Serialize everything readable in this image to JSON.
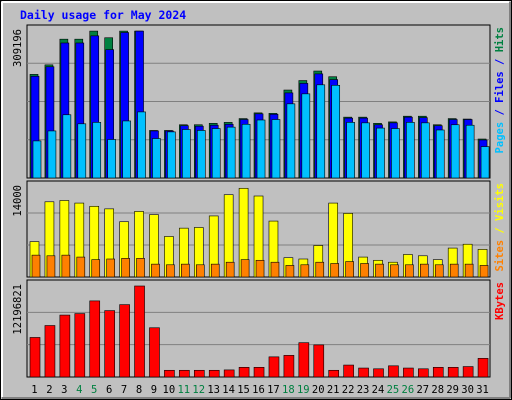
{
  "chart_data": {
    "type": "bar",
    "title": "Daily usage for May 2024",
    "categories": [
      "1",
      "2",
      "3",
      "4",
      "5",
      "6",
      "7",
      "8",
      "9",
      "10",
      "11",
      "12",
      "13",
      "14",
      "15",
      "16",
      "17",
      "18",
      "19",
      "20",
      "21",
      "22",
      "23",
      "24",
      "25",
      "26",
      "27",
      "28",
      "29",
      "30",
      "31"
    ],
    "weekend_days": [
      "4",
      "5",
      "11",
      "12",
      "18",
      "19",
      "25",
      "26"
    ],
    "panels": [
      {
        "id": "hits",
        "ymax_label": "309196",
        "ymax": 309196,
        "right_label": [
          {
            "text": "Pages",
            "color": "#00c0ff"
          },
          {
            "text": " / ",
            "color": "#0000ff"
          },
          {
            "text": "Files",
            "color": "#0000ff"
          },
          {
            "text": " / ",
            "color": "#0000ff"
          },
          {
            "text": "Hits",
            "color": "#008040"
          }
        ],
        "series": [
          {
            "name": "Hits",
            "color": "#008040",
            "values": [
              218000,
              238000,
              292000,
              292000,
              309000,
              295000,
              309000,
              309000,
              100000,
              100000,
              112000,
              112000,
              115000,
              117000,
              125000,
              137000,
              136000,
              185000,
              205000,
              225000,
              213000,
              128000,
              128000,
              115000,
              118000,
              130000,
              130000,
              112000,
              125000,
              124000,
              82000
            ]
          },
          {
            "name": "Files",
            "color": "#0000ff",
            "values": [
              214000,
              234000,
              284000,
              284000,
              299000,
              270000,
              306000,
              309000,
              99000,
              99000,
              110000,
              109000,
              111000,
              113000,
              123000,
              135000,
              134000,
              179000,
              199000,
              219000,
              207000,
              126000,
              126000,
              112000,
              116000,
              128000,
              127000,
              110000,
              123000,
              123000,
              80000
            ]
          },
          {
            "name": "Pages",
            "color": "#00c0ff",
            "values": [
              78000,
              99000,
              133000,
              114000,
              117000,
              81000,
              120000,
              139000,
              83000,
              97000,
              102000,
              100000,
              104000,
              107000,
              113000,
              122000,
              123000,
              156000,
              177000,
              196000,
              195000,
              117000,
              116000,
              105000,
              104000,
              117000,
              116000,
              101000,
              112000,
              111000,
              66000
            ]
          }
        ]
      },
      {
        "id": "visits",
        "ymax_label": "14000",
        "ymax": 14000,
        "right_label": [
          {
            "text": "Sites",
            "color": "#ff8000"
          },
          {
            "text": " / ",
            "color": "#ffff00"
          },
          {
            "text": "Visits",
            "color": "#ffff00"
          }
        ],
        "series": [
          {
            "name": "Visits",
            "color": "#ffff00",
            "values": [
              5500,
              11700,
              11900,
              11500,
              11000,
              10600,
              8600,
              10200,
              9700,
              6300,
              7600,
              7700,
              9500,
              12800,
              13800,
              12600,
              8700,
              3000,
              2800,
              4900,
              11500,
              9900,
              3100,
              2600,
              2300,
              3500,
              3300,
              2700,
              4500,
              5100,
              4300
            ]
          },
          {
            "name": "Sites",
            "color": "#ff8000",
            "values": [
              3400,
              3300,
              3400,
              3100,
              2700,
              2800,
              2900,
              2900,
              2000,
              1900,
              2000,
              1900,
              2000,
              2300,
              2700,
              2600,
              2300,
              1800,
              1900,
              2300,
              2100,
              2400,
              2100,
              2000,
              1900,
              1900,
              2000,
              1900,
              2000,
              2000,
              1800
            ]
          }
        ]
      },
      {
        "id": "kbytes",
        "ymax_label": "12196821",
        "ymax": 12196821,
        "right_label": [
          {
            "text": "KBytes",
            "color": "#ff0000"
          }
        ],
        "series": [
          {
            "name": "KBytes",
            "color": "#ff0000",
            "values": [
              5300000,
              6900000,
              8300000,
              8500000,
              10200000,
              8900000,
              9700000,
              12196821,
              6600000,
              900000,
              900000,
              900000,
              900000,
              950000,
              1300000,
              1300000,
              2700000,
              2900000,
              4600000,
              4300000,
              900000,
              1600000,
              1200000,
              1100000,
              1500000,
              1200000,
              1100000,
              1300000,
              1300000,
              1400000,
              2500000
            ]
          }
        ]
      }
    ]
  }
}
